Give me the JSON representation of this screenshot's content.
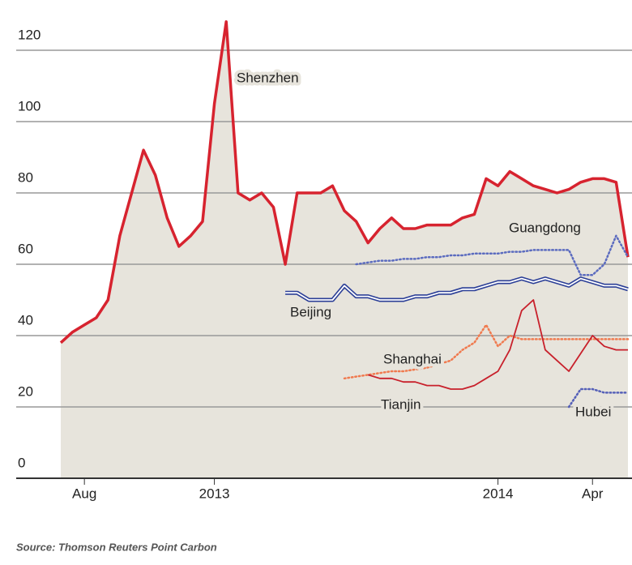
{
  "chart_data": {
    "type": "line",
    "source": "Source: Thomson Reuters Point Carbon",
    "categories": [
      null,
      null,
      "Aug",
      null,
      null,
      null,
      null,
      null,
      null,
      null,
      null,
      null,
      null,
      "2013",
      null,
      null,
      null,
      null,
      null,
      null,
      null,
      null,
      null,
      null,
      null,
      null,
      null,
      null,
      null,
      null,
      null,
      null,
      null,
      null,
      null,
      null,
      null,
      "2014",
      null,
      null,
      null,
      null,
      null,
      null,
      null,
      "Apr",
      null,
      null,
      null
    ],
    "ylim": [
      0,
      120
    ],
    "yticks": [
      0,
      20,
      40,
      60,
      80,
      100,
      120
    ],
    "grid": true,
    "series": [
      {
        "name": "Shenzhen",
        "color": "#d7232f",
        "style": "thick",
        "fill": "#e7e4dc",
        "values": [
          38,
          41,
          43,
          45,
          50,
          68,
          80,
          92,
          85,
          73,
          65,
          68,
          72,
          105,
          128,
          80,
          78,
          80,
          76,
          60,
          80,
          80,
          80,
          82,
          75,
          72,
          66,
          70,
          73,
          70,
          70,
          71,
          71,
          71,
          73,
          74,
          84,
          82,
          86,
          84,
          82,
          81,
          80,
          81,
          83,
          84,
          84,
          83,
          62
        ]
      },
      {
        "name": "Guangdong",
        "color": "#5b6bbf",
        "style": "dotted",
        "values": [
          null,
          null,
          null,
          null,
          null,
          null,
          null,
          null,
          null,
          null,
          null,
          null,
          null,
          null,
          null,
          null,
          null,
          null,
          null,
          null,
          null,
          null,
          null,
          null,
          null,
          60,
          60.5,
          61,
          61,
          61.5,
          61.5,
          62,
          62,
          62.5,
          62.5,
          63,
          63,
          63,
          63.5,
          63.5,
          64,
          64,
          64,
          64,
          57,
          57,
          60,
          68,
          62
        ]
      },
      {
        "name": "Beijing",
        "color": "#2c3f97",
        "style": "double",
        "values": [
          null,
          null,
          null,
          null,
          null,
          null,
          null,
          null,
          null,
          null,
          null,
          null,
          null,
          null,
          null,
          null,
          null,
          null,
          null,
          52,
          52,
          50,
          50,
          50,
          54,
          51,
          51,
          50,
          50,
          50,
          51,
          51,
          52,
          52,
          53,
          53,
          54,
          55,
          55,
          56,
          55,
          56,
          55,
          54,
          56,
          55,
          54,
          54,
          53
        ]
      },
      {
        "name": "Shanghai",
        "color": "#f07a4f",
        "style": "dotted",
        "values": [
          null,
          null,
          null,
          null,
          null,
          null,
          null,
          null,
          null,
          null,
          null,
          null,
          null,
          null,
          null,
          null,
          null,
          null,
          null,
          null,
          null,
          null,
          null,
          null,
          28,
          28.5,
          29,
          29.5,
          30,
          30,
          30.5,
          31,
          32,
          33,
          36,
          38,
          43,
          37,
          40,
          39,
          39,
          39,
          39,
          39,
          39,
          39,
          39,
          39,
          39
        ]
      },
      {
        "name": "Tianjin",
        "color": "#c8202b",
        "style": "thin",
        "values": [
          null,
          null,
          null,
          null,
          null,
          null,
          null,
          null,
          null,
          null,
          null,
          null,
          null,
          null,
          null,
          null,
          null,
          null,
          null,
          null,
          null,
          null,
          null,
          null,
          null,
          null,
          29,
          28,
          28,
          27,
          27,
          26,
          26,
          25,
          25,
          26,
          28,
          30,
          36,
          47,
          50,
          36,
          33,
          30,
          35,
          40,
          37,
          36,
          36
        ]
      },
      {
        "name": "Hubei",
        "color": "#5560b8",
        "style": "dotted",
        "values": [
          null,
          null,
          null,
          null,
          null,
          null,
          null,
          null,
          null,
          null,
          null,
          null,
          null,
          null,
          null,
          null,
          null,
          null,
          null,
          null,
          null,
          null,
          null,
          null,
          null,
          null,
          null,
          null,
          null,
          null,
          null,
          null,
          null,
          null,
          null,
          null,
          null,
          null,
          null,
          null,
          null,
          null,
          null,
          20,
          25,
          25,
          24,
          24,
          24
        ]
      }
    ]
  }
}
